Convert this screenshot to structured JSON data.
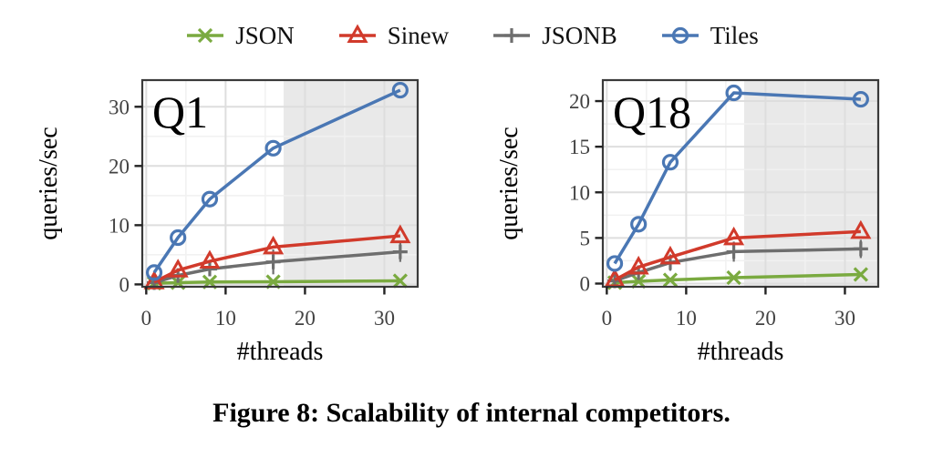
{
  "caption": "Figure 8: Scalability of internal competitors.",
  "colors": {
    "json": "#7aaa40",
    "sinew": "#d13a2b",
    "jsonb": "#6e6e6e",
    "tiles": "#4a77b4",
    "shade": "#e9e9e9",
    "grid_major": "#dedede",
    "grid_minor": "#f1f1f1",
    "panel_border": "#3a3a3a",
    "tick_text": "#424242"
  },
  "legend": {
    "position": "top",
    "items": [
      {
        "label": "JSON",
        "marker": "x",
        "color": "#7aaa40"
      },
      {
        "label": "Sinew",
        "marker": "triangle",
        "color": "#d13a2b"
      },
      {
        "label": "JSONB",
        "marker": "plus",
        "color": "#6e6e6e"
      },
      {
        "label": "Tiles",
        "marker": "circle",
        "color": "#4a77b4"
      }
    ]
  },
  "chart_data": [
    {
      "type": "line",
      "title": "Q1",
      "xlabel": "#threads",
      "ylabel": "queries/sec",
      "x": [
        1,
        4,
        8,
        16,
        32
      ],
      "xticks": [
        0,
        10,
        20,
        30
      ],
      "yticks": [
        0,
        10,
        20,
        30
      ],
      "xlim": [
        -0.5,
        34.2
      ],
      "ylim": [
        -0.4,
        34.5
      ],
      "grid": true,
      "shaded_region_from_x": 17.3,
      "series": [
        {
          "name": "JSON",
          "marker": "x",
          "color": "#7aaa40",
          "values": [
            0.2,
            0.3,
            0.4,
            0.45,
            0.6
          ]
        },
        {
          "name": "JSONB",
          "marker": "plus",
          "color": "#6e6e6e",
          "values": [
            0.3,
            1.5,
            2.6,
            3.8,
            5.5
          ],
          "error": [
            0.3,
            0.8,
            1.0,
            2.1,
            1.7
          ]
        },
        {
          "name": "Sinew",
          "marker": "triangle",
          "color": "#d13a2b",
          "values": [
            0.4,
            2.4,
            3.9,
            6.3,
            8.2
          ]
        },
        {
          "name": "Tiles",
          "marker": "circle",
          "color": "#4a77b4",
          "values": [
            2.0,
            7.9,
            14.4,
            23.0,
            32.8
          ]
        }
      ]
    },
    {
      "type": "line",
      "title": "Q18",
      "xlabel": "#threads",
      "ylabel": "queries/sec",
      "x": [
        1,
        4,
        8,
        16,
        32
      ],
      "xticks": [
        0,
        10,
        20,
        30
      ],
      "yticks": [
        0,
        5,
        10,
        15,
        20
      ],
      "xlim": [
        -0.5,
        34.2
      ],
      "ylim": [
        -0.35,
        22.3
      ],
      "grid": true,
      "shaded_region_from_x": 17.3,
      "series": [
        {
          "name": "JSON",
          "marker": "x",
          "color": "#7aaa40",
          "values": [
            0.1,
            0.25,
            0.4,
            0.65,
            1.0
          ]
        },
        {
          "name": "JSONB",
          "marker": "plus",
          "color": "#6e6e6e",
          "values": [
            0.3,
            1.2,
            2.3,
            3.5,
            3.8
          ],
          "error": [
            0.2,
            0.5,
            0.9,
            1.1,
            1.0
          ]
        },
        {
          "name": "Sinew",
          "marker": "triangle",
          "color": "#d13a2b",
          "values": [
            0.4,
            1.8,
            2.9,
            5.0,
            5.7
          ]
        },
        {
          "name": "Tiles",
          "marker": "circle",
          "color": "#4a77b4",
          "values": [
            2.2,
            6.5,
            13.3,
            20.9,
            20.2
          ]
        }
      ]
    }
  ]
}
